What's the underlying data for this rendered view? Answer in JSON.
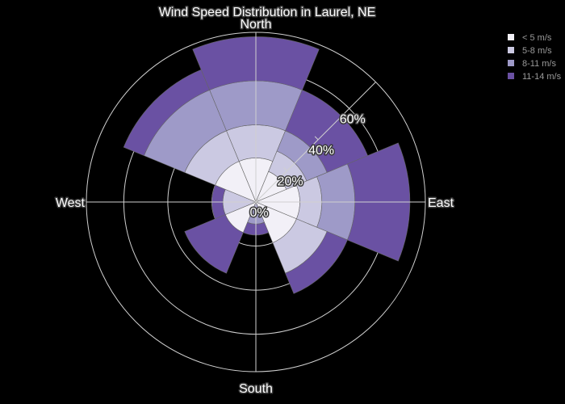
{
  "chart_data": {
    "type": "barpolar",
    "title": "Wind Speed Distribution in Laurel, NE",
    "direction_labels": [
      "North",
      "East",
      "South",
      "West"
    ],
    "directions": [
      "N",
      "NE",
      "E",
      "SE",
      "S",
      "SW",
      "W",
      "NW"
    ],
    "radial_tick_labels": [
      "0%",
      "20%",
      "40%",
      "60%"
    ],
    "radial_ticks": [
      0,
      20,
      40,
      60
    ],
    "radial_range": [
      0,
      77
    ],
    "series": [
      {
        "name": "< 5 m/s",
        "color": "#f2f0f7",
        "values": [
          20,
          15,
          20,
          20,
          0,
          15,
          0,
          20
        ]
      },
      {
        "name": "5-8 m/s",
        "color": "#cbc9e2",
        "values": [
          15,
          10,
          10,
          15,
          0,
          0,
          15,
          15
        ]
      },
      {
        "name": "8-11 m/s",
        "color": "#9e9ac8",
        "values": [
          20,
          10,
          15,
          0,
          10,
          0,
          0,
          20
        ]
      },
      {
        "name": "11-14 m/s",
        "color": "#6a51a3",
        "values": [
          20,
          20,
          25,
          10,
          5,
          20,
          5,
          10
        ]
      }
    ],
    "legend_position": "top-right",
    "grid": true,
    "background": "#000000"
  }
}
